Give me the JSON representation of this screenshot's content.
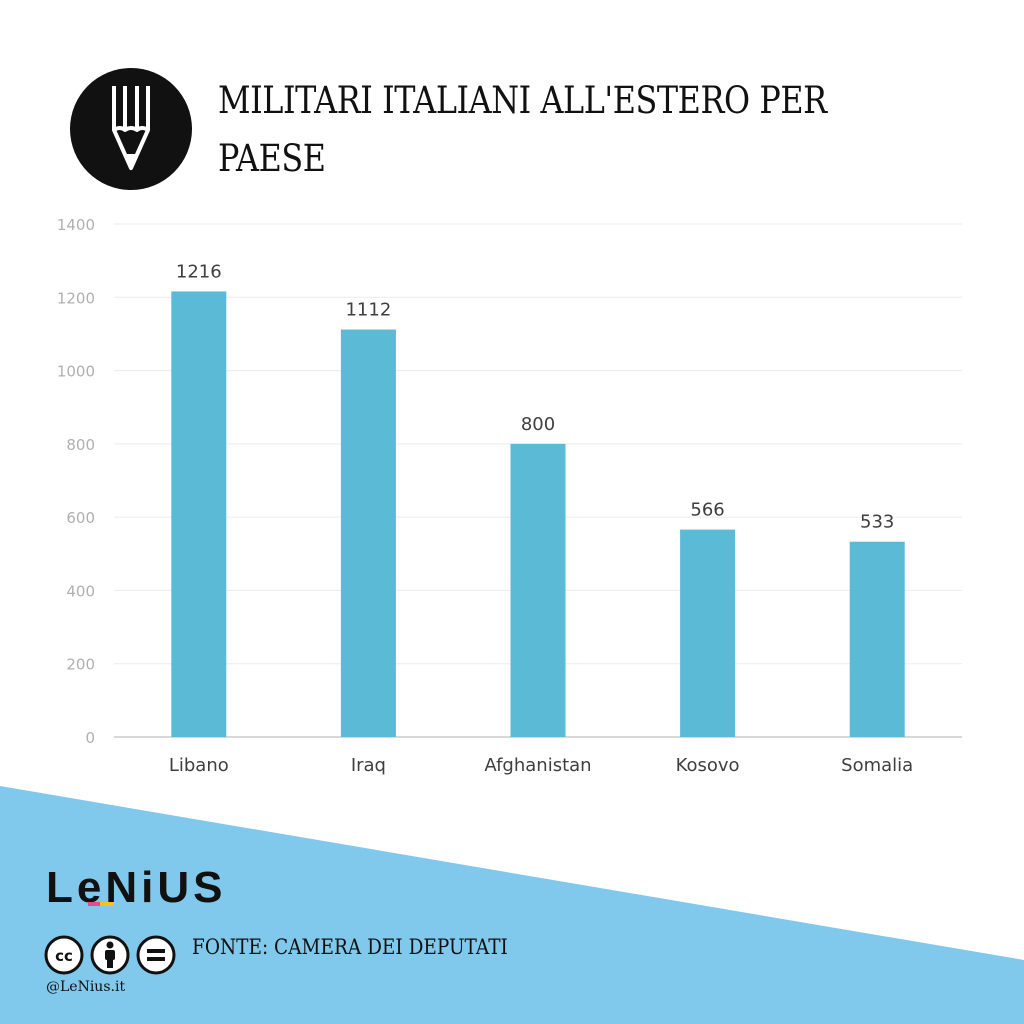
{
  "header": {
    "title": "MILITARI ITALIANI ALL'ESTERO PER PAESE",
    "logo_icon": "pencil-icon"
  },
  "colors": {
    "bar": "#5bbad5",
    "wedge": "#80c9ec",
    "grid": "#ececec",
    "axis": "#cccccc",
    "tick_text": "#b0b0b0",
    "label_text": "#3f3f3f"
  },
  "chart_data": {
    "type": "bar",
    "categories": [
      "Libano",
      "Iraq",
      "Afghanistan",
      "Kosovo",
      "Somalia"
    ],
    "values": [
      1216,
      1112,
      800,
      566,
      533
    ],
    "data_labels": [
      "1216",
      "1112",
      "800",
      "566",
      "533"
    ],
    "y_ticks": [
      0,
      200,
      400,
      600,
      800,
      1000,
      1200,
      1400
    ],
    "ylim": [
      0,
      1400
    ],
    "grid": true,
    "title": "",
    "xlabel": "",
    "ylabel": ""
  },
  "footer": {
    "brand": "LeNiUS",
    "license_icons": [
      "cc-icon",
      "attribution-icon",
      "no-derivatives-icon"
    ],
    "source": "FONTE: CAMERA DEI DEPUTATI",
    "handle": "@LeNius.it"
  }
}
